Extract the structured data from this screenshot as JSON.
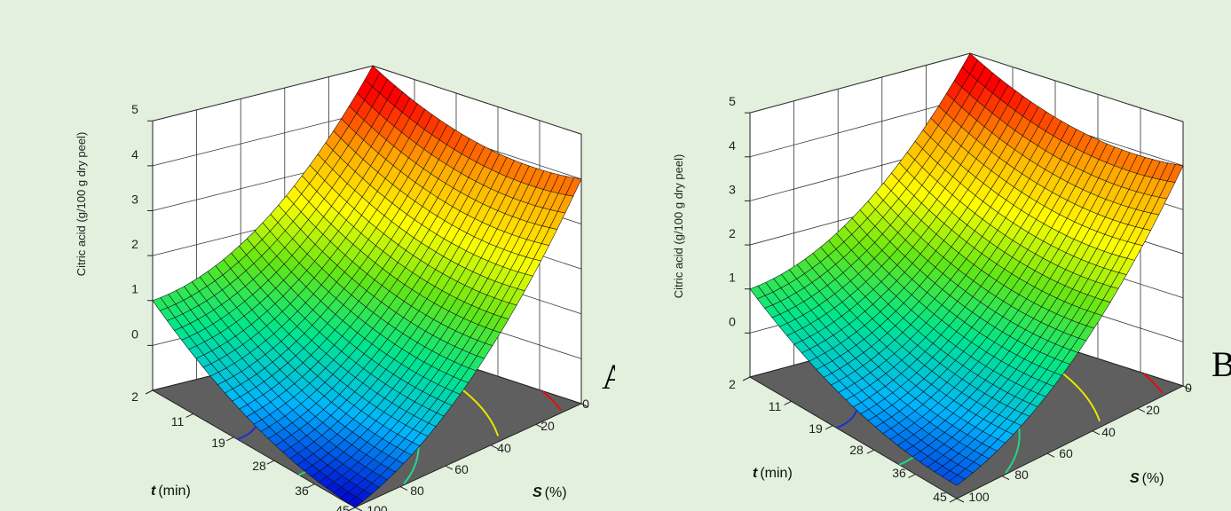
{
  "chart_data": [
    {
      "type": "surface3d",
      "panel_label": "A",
      "zlabel": "Citric acid (g/100 g dry peel)",
      "xlabel_symbol": "S",
      "xlabel_unit": "(%)",
      "ylabel_symbol": "t",
      "ylabel_unit": "(min)",
      "x_ticks": [
        "0",
        "20",
        "40",
        "60",
        "80",
        "100"
      ],
      "y_ticks": [
        "2",
        "11",
        "19",
        "28",
        "36",
        "45"
      ],
      "z_ticks": [
        "0",
        "1",
        "2",
        "3",
        "4",
        "5"
      ],
      "xlim": [
        0,
        100
      ],
      "ylim": [
        2,
        45
      ],
      "zlim": [
        -1,
        5
      ],
      "surface_samples": [
        {
          "S": 100,
          "t": 45,
          "z": 1.0
        },
        {
          "S": 100,
          "t": 2,
          "z": -1.0
        },
        {
          "S": 0,
          "t": 45,
          "z": 5.0
        },
        {
          "S": 0,
          "t": 2,
          "z": 4.0
        }
      ],
      "grid": true,
      "colormap": [
        "#0000d0",
        "#00b4ff",
        "#00e68c",
        "#64e614",
        "#ffff00",
        "#ffaa00",
        "#ff0000"
      ]
    },
    {
      "type": "surface3d",
      "panel_label": "B",
      "zlabel": "Citric acid (g/100 g dry peel)",
      "xlabel_symbol": "S",
      "xlabel_unit": "(%)",
      "ylabel_symbol": "t",
      "ylabel_unit": "(min)",
      "x_ticks": [
        "0",
        "20",
        "40",
        "60",
        "80",
        "100"
      ],
      "y_ticks": [
        "2",
        "11",
        "19",
        "28",
        "36",
        "45"
      ],
      "z_ticks": [
        "0",
        "1",
        "2",
        "3",
        "4",
        "5"
      ],
      "xlim": [
        0,
        100
      ],
      "ylim": [
        2,
        45
      ],
      "zlim": [
        -1,
        5
      ],
      "surface_samples": [
        {
          "S": 100,
          "t": 45,
          "z": 1.0
        },
        {
          "S": 100,
          "t": 2,
          "z": -0.7
        },
        {
          "S": 0,
          "t": 45,
          "z": 5.0
        },
        {
          "S": 0,
          "t": 2,
          "z": 4.0
        }
      ],
      "grid": true,
      "colormap": [
        "#0000d0",
        "#00b4ff",
        "#00e68c",
        "#64e614",
        "#ffff00",
        "#ffaa00",
        "#ff0000"
      ]
    }
  ]
}
